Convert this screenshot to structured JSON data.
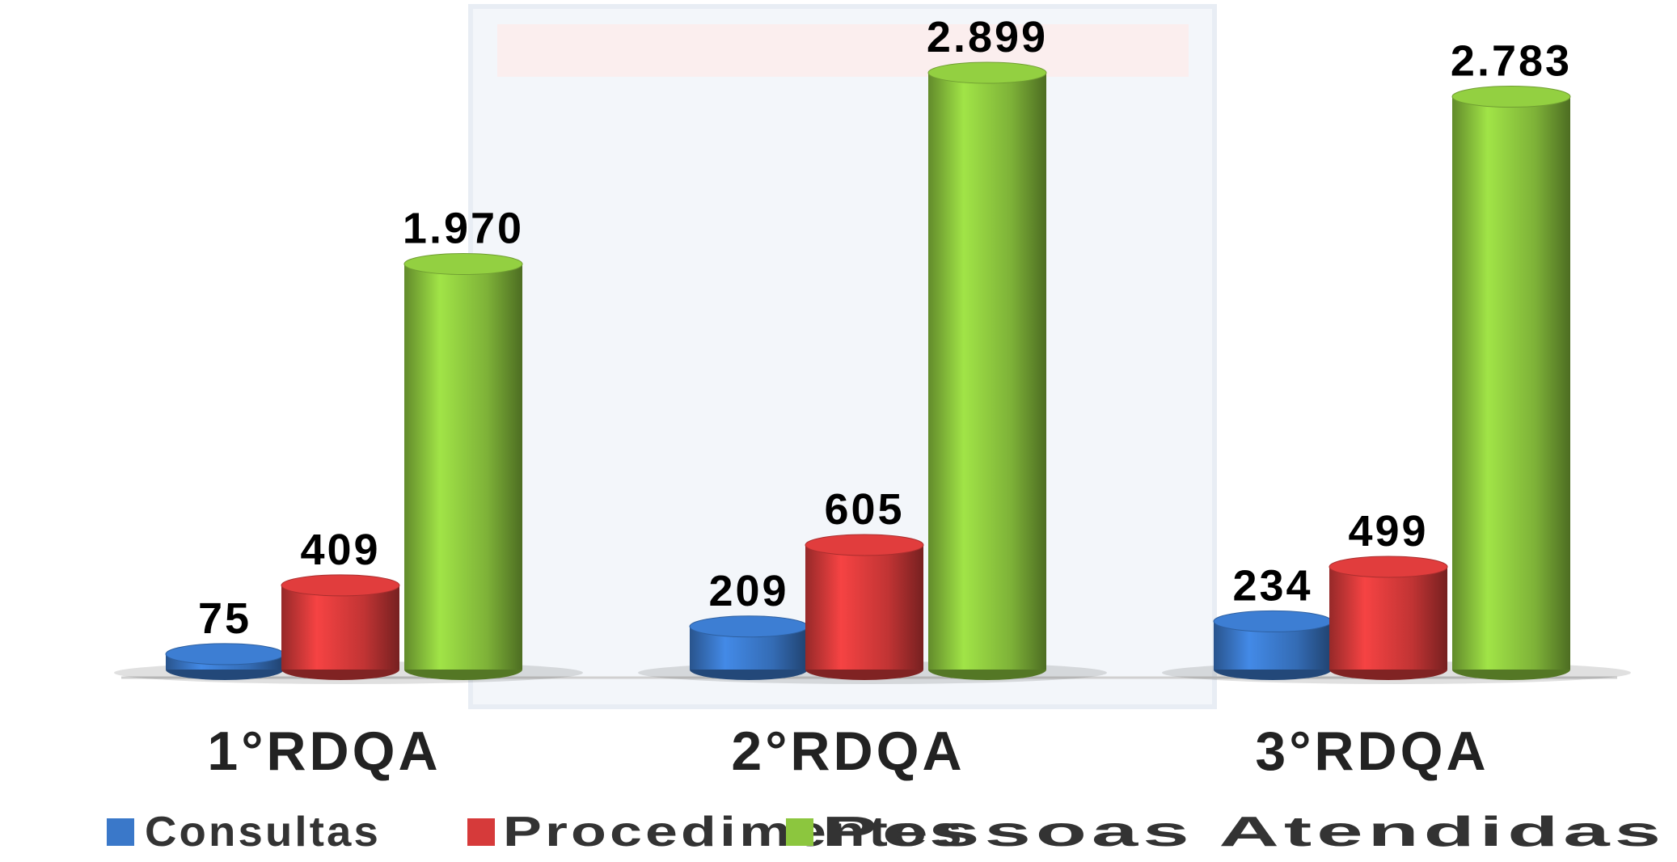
{
  "chart_data": {
    "type": "bar3d",
    "categories": [
      "1°RDQA",
      "2°RDQA",
      "3°RDQA"
    ],
    "series": [
      {
        "name": "Consultas",
        "color": "#3a78c9",
        "values": [
          75,
          209,
          234
        ]
      },
      {
        "name": "Procedimentos",
        "color": "#d63a3a",
        "values": [
          409,
          605,
          499
        ]
      },
      {
        "name": "Pessoas Atendidas",
        "color": "#8cc63e",
        "values": [
          1970,
          2899,
          2783
        ],
        "value_labels": [
          "1.970",
          "2.899",
          "2.783"
        ]
      }
    ],
    "legend": "bottom"
  }
}
